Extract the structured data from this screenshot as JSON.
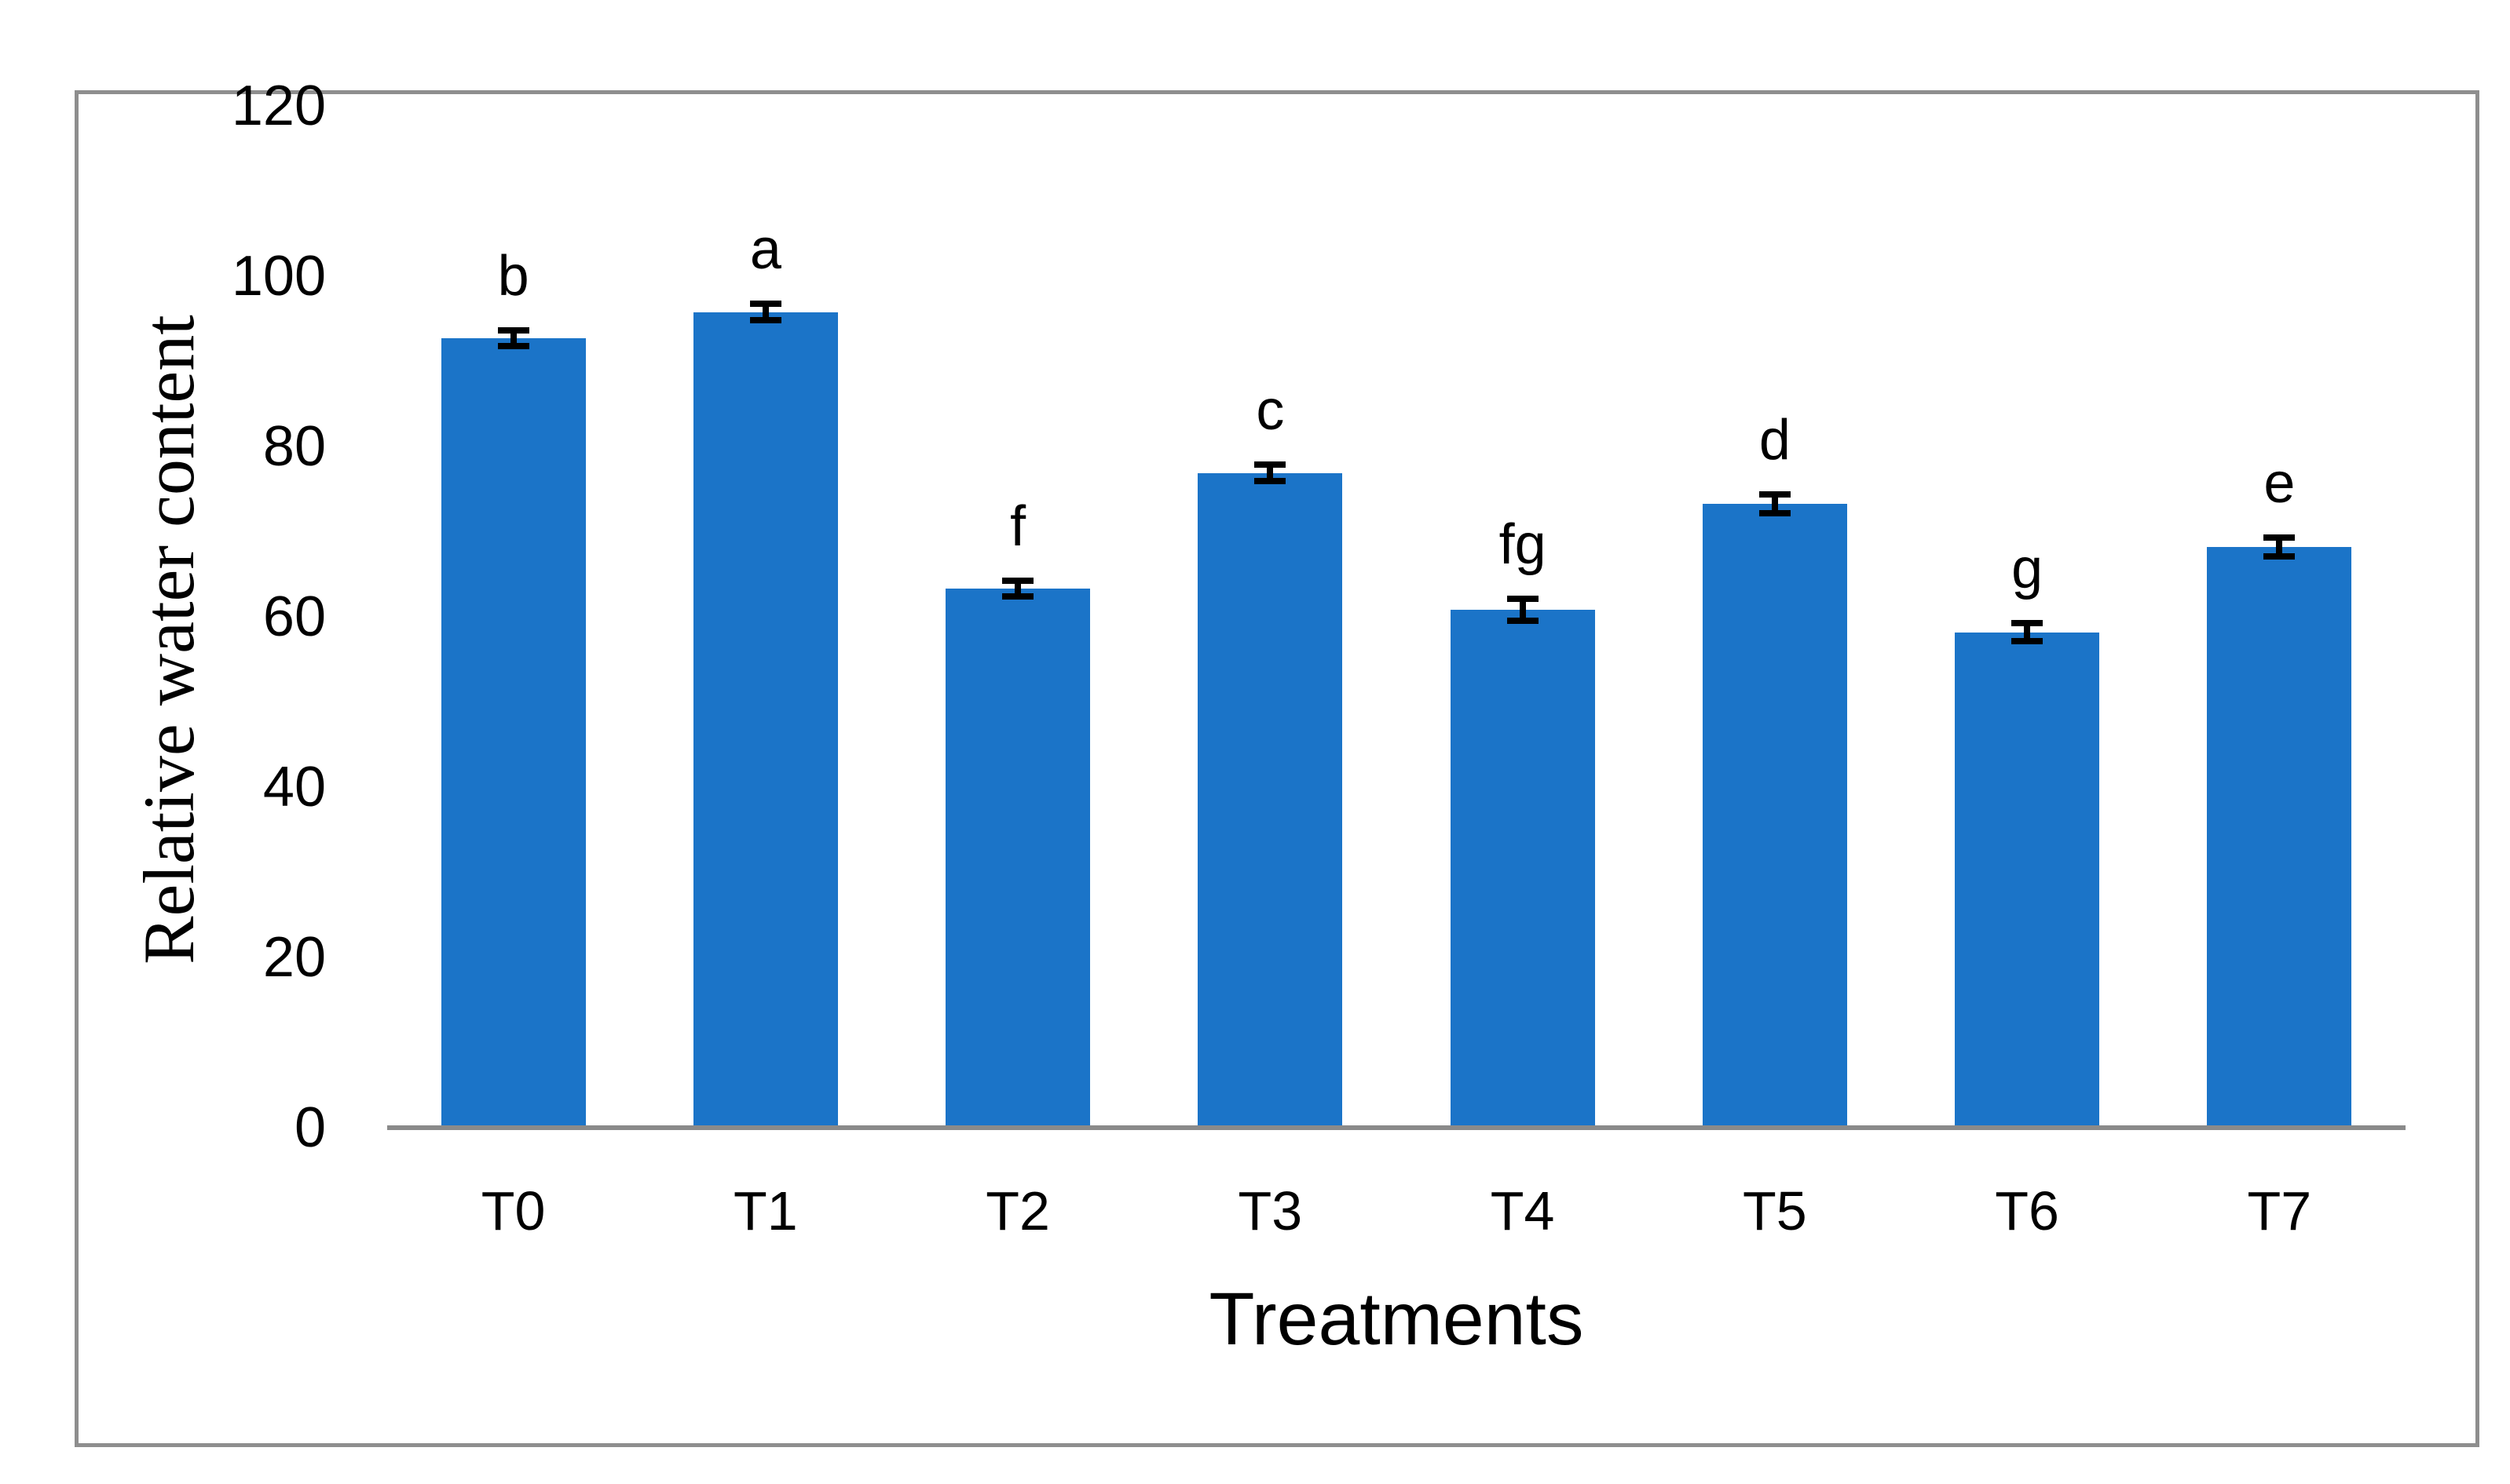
{
  "chart_data": {
    "type": "bar",
    "categories": [
      "T0",
      "T1",
      "T2",
      "T3",
      "T4",
      "T5",
      "T6",
      "T7"
    ],
    "values": [
      92.7,
      95.8,
      63.3,
      76.9,
      60.8,
      73.3,
      58.2,
      68.2
    ],
    "errors": [
      0.9,
      1.0,
      0.9,
      1.0,
      1.3,
      1.1,
      1.1,
      1.1
    ],
    "bar_letters": [
      "b",
      "a",
      "f",
      "c",
      "fg",
      "d",
      "g",
      "e"
    ],
    "title": "",
    "xlabel": "Treatments",
    "ylabel": "Relative water content",
    "ylim": [
      0,
      120
    ],
    "yticks": [
      0,
      20,
      40,
      60,
      80,
      100,
      120
    ],
    "grid": false,
    "legend": false,
    "bar_color": "#1B74C8",
    "error_bar_color": "#000000",
    "axis_line_color": "#8A8A8A",
    "frame_border_color": "#8E8E8E",
    "background_color": "#FFFFFF"
  }
}
